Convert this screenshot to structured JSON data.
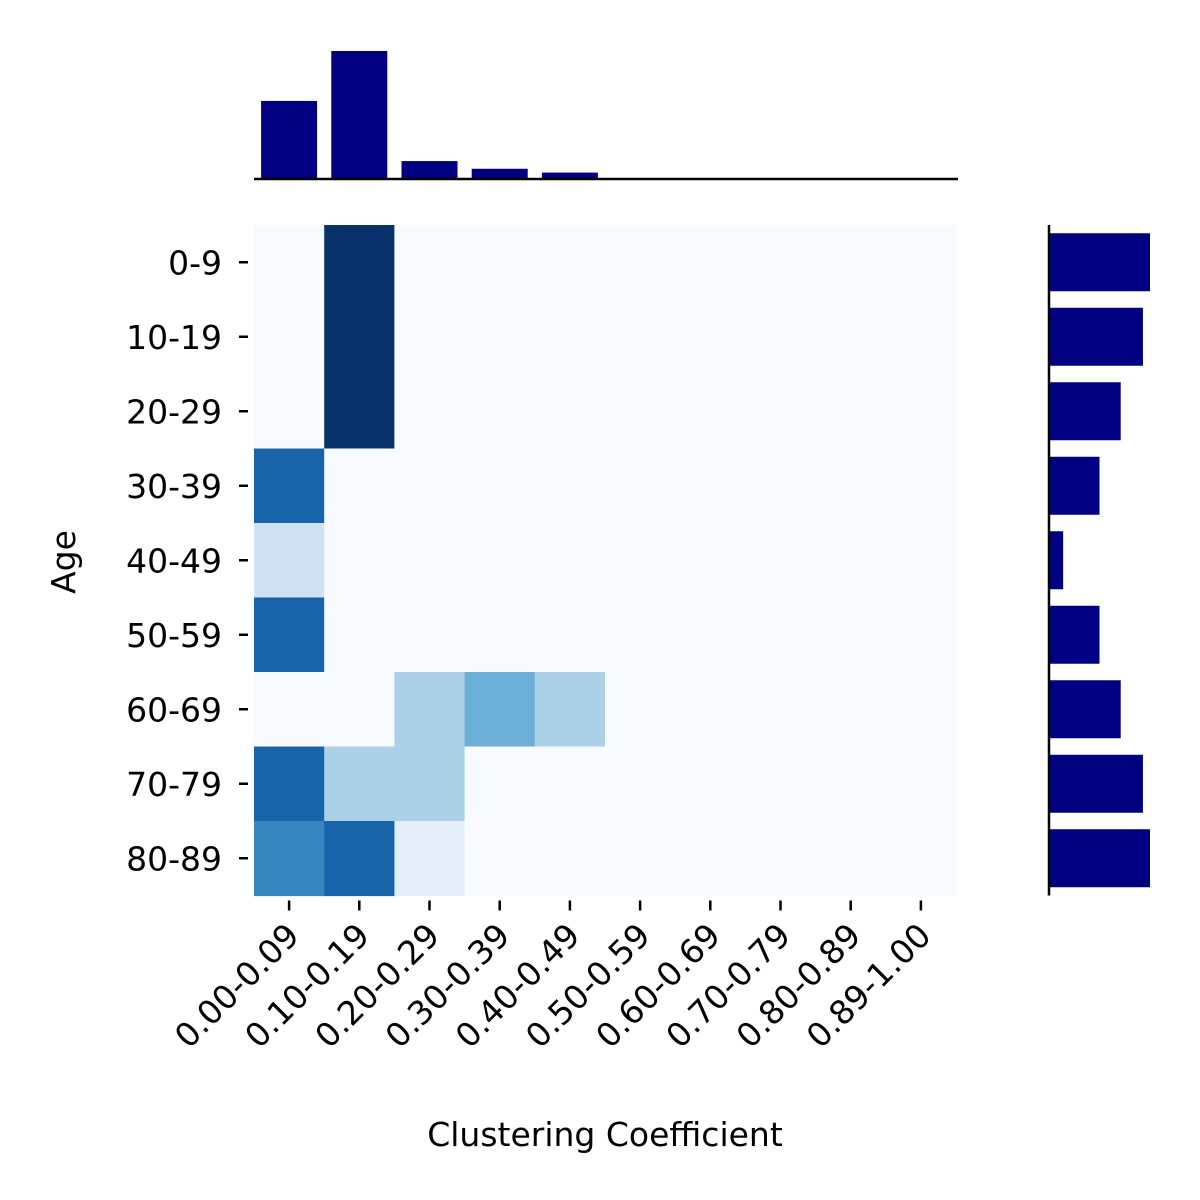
{
  "chart_data": {
    "type": "heatmap",
    "xlabel": "Clustering Coefficient",
    "ylabel": "Age",
    "x_categories": [
      "0.00-0.09",
      "0.10-0.19",
      "0.20-0.29",
      "0.30-0.39",
      "0.40-0.49",
      "0.50-0.59",
      "0.60-0.69",
      "0.70-0.79",
      "0.80-0.89",
      "0.89-1.00"
    ],
    "y_categories": [
      "0-9",
      "10-19",
      "20-29",
      "30-39",
      "40-49",
      "50-59",
      "60-69",
      "70-79",
      "80-89"
    ],
    "colormap": "Blues",
    "value_range": [
      0,
      1
    ],
    "matrix": [
      [
        0,
        1.0,
        0,
        0,
        0,
        0,
        0,
        0,
        0,
        0
      ],
      [
        0,
        1.0,
        0,
        0,
        0,
        0,
        0,
        0,
        0,
        0
      ],
      [
        0,
        1.0,
        0,
        0,
        0,
        0,
        0,
        0,
        0,
        0
      ],
      [
        0.8,
        0,
        0,
        0,
        0,
        0,
        0,
        0,
        0,
        0
      ],
      [
        0.2,
        0,
        0,
        0,
        0,
        0,
        0,
        0,
        0,
        0
      ],
      [
        0.8,
        0,
        0,
        0,
        0,
        0,
        0,
        0,
        0,
        0
      ],
      [
        0,
        0,
        0.33,
        0.5,
        0.33,
        0,
        0,
        0,
        0,
        0
      ],
      [
        0.8,
        0.33,
        0.33,
        0,
        0,
        0,
        0,
        0,
        0,
        0
      ],
      [
        0.67,
        0.8,
        0.1,
        0,
        0,
        0,
        0,
        0,
        0,
        0
      ]
    ],
    "marginal_top": {
      "type": "bar",
      "color": "#000080",
      "values": [
        0.61,
        1.0,
        0.14,
        0.08,
        0.05,
        0,
        0,
        0,
        0,
        0
      ]
    },
    "marginal_right": {
      "type": "barh",
      "color": "#000080",
      "values": [
        1.0,
        0.93,
        0.71,
        0.5,
        0.14,
        0.5,
        0.71,
        0.93,
        1.0
      ]
    },
    "grid": false
  }
}
